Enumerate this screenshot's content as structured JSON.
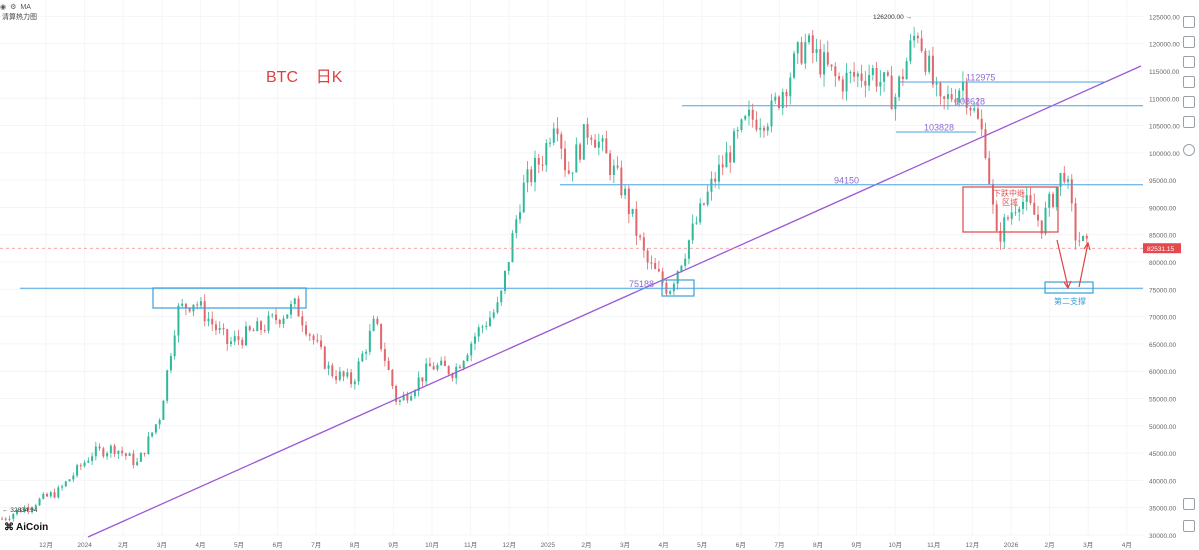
{
  "header": {
    "indicator_label": "MA",
    "sub_label": "清算热力图"
  },
  "logo": {
    "mark": "⌘",
    "text": "AiCoin"
  },
  "chart_data": {
    "type": "candlestick",
    "title": "BTC    日K",
    "ylim": [
      30000,
      128000
    ],
    "y_ticks": [
      125000,
      120000,
      115000,
      110000,
      105000,
      100000,
      95000,
      90000,
      85000,
      80000,
      75000,
      70000,
      65000,
      60000,
      55000,
      50000,
      45000,
      40000,
      35000,
      30000
    ],
    "x_ticks": [
      "12月",
      "2024",
      "2月",
      "3月",
      "4月",
      "5月",
      "6月",
      "7月",
      "8月",
      "9月",
      "10月",
      "11月",
      "12月",
      "2025",
      "2月",
      "3月",
      "4月",
      "5月",
      "6月",
      "7月",
      "8月",
      "9月",
      "10月",
      "11月",
      "12月",
      "2026",
      "2月",
      "3月",
      "4月"
    ],
    "range_start_label": "← 32834.94",
    "price_path": [
      [
        0,
        33000
      ],
      [
        0.05,
        38000
      ],
      [
        0.08,
        45000
      ],
      [
        0.1,
        46000
      ],
      [
        0.12,
        43000
      ],
      [
        0.14,
        52000
      ],
      [
        0.155,
        71000
      ],
      [
        0.17,
        73000
      ],
      [
        0.2,
        65000
      ],
      [
        0.23,
        68000
      ],
      [
        0.26,
        72000
      ],
      [
        0.29,
        60000
      ],
      [
        0.31,
        58000
      ],
      [
        0.33,
        69000
      ],
      [
        0.35,
        54000
      ],
      [
        0.38,
        61000
      ],
      [
        0.4,
        60000
      ],
      [
        0.42,
        67000
      ],
      [
        0.44,
        72000
      ],
      [
        0.46,
        93000
      ],
      [
        0.48,
        100000
      ],
      [
        0.49,
        108000
      ],
      [
        0.5,
        96000
      ],
      [
        0.52,
        105000
      ],
      [
        0.55,
        93000
      ],
      [
        0.57,
        80000
      ],
      [
        0.59,
        75000
      ],
      [
        0.61,
        85000
      ],
      [
        0.63,
        95000
      ],
      [
        0.66,
        106000
      ],
      [
        0.68,
        107000
      ],
      [
        0.71,
        120000
      ],
      [
        0.74,
        113000
      ],
      [
        0.77,
        115000
      ],
      [
        0.79,
        110000
      ],
      [
        0.81,
        123000
      ],
      [
        0.83,
        108000
      ],
      [
        0.85,
        113000
      ],
      [
        0.87,
        102000
      ],
      [
        0.88,
        84000
      ],
      [
        0.9,
        92000
      ],
      [
        0.92,
        87000
      ],
      [
        0.94,
        97000
      ],
      [
        0.95,
        85000
      ],
      [
        0.96,
        82500
      ]
    ],
    "current_price": "82531.15",
    "high_label": "126200.00 →",
    "levels": [
      {
        "label": "112975",
        "value": 112975
      },
      {
        "label": "108628",
        "value": 108628
      },
      {
        "label": "103828",
        "value": 103828
      },
      {
        "label": "94150",
        "value": 94150
      },
      {
        "label": "75188",
        "value": 75188
      }
    ],
    "annotations": [
      {
        "text": "下跌中继"
      },
      {
        "text": "区域"
      },
      {
        "text": "第二支撑"
      }
    ],
    "colors": {
      "up": "#2fb89a",
      "down": "#e0676b",
      "level": "#4aa3df",
      "trend": "#9b59d6",
      "box_red": "#e05555",
      "box_blue": "#3aa0d8",
      "label_purple": "#8e6bd6",
      "title_red": "#e04040"
    }
  }
}
